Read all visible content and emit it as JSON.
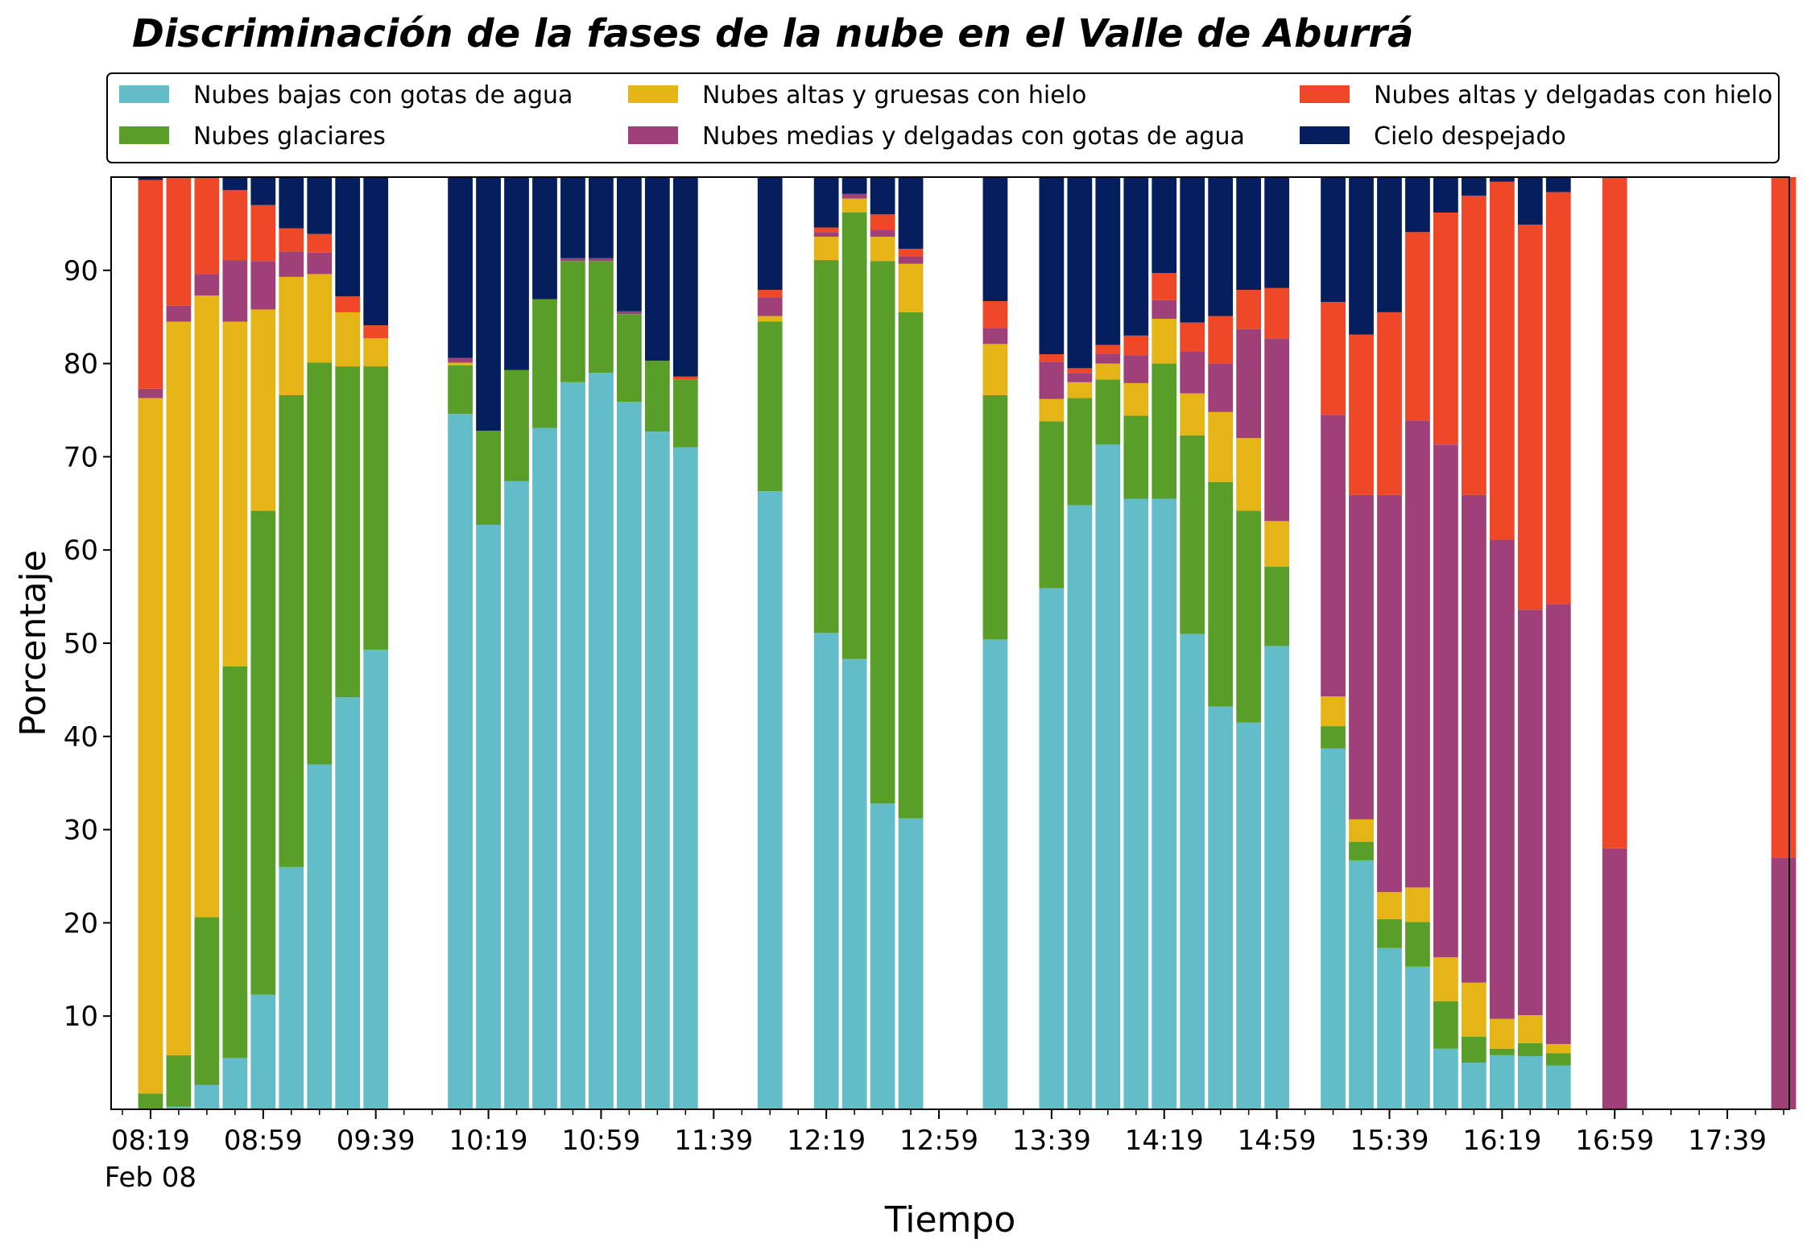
{
  "chart_data": {
    "type": "bar",
    "stacked": true,
    "title": "Discriminación de la fases de la nube en el Valle de Aburrá",
    "xlabel": "Tiempo",
    "ylabel": "Porcentaje",
    "ylim": [
      0,
      100
    ],
    "y_ticks": [
      10,
      20,
      30,
      40,
      50,
      60,
      70,
      80,
      90
    ],
    "x_range_minutes": [
      485,
      1081
    ],
    "x_ticks": [
      {
        "min": 499,
        "label": "08:19",
        "sub": "Feb 08"
      },
      {
        "min": 539,
        "label": "08:59"
      },
      {
        "min": 579,
        "label": "09:39"
      },
      {
        "min": 619,
        "label": "10:19"
      },
      {
        "min": 659,
        "label": "10:59"
      },
      {
        "min": 699,
        "label": "11:39"
      },
      {
        "min": 739,
        "label": "12:19"
      },
      {
        "min": 779,
        "label": "12:59"
      },
      {
        "min": 819,
        "label": "13:39"
      },
      {
        "min": 859,
        "label": "14:19"
      },
      {
        "min": 899,
        "label": "14:59"
      },
      {
        "min": 939,
        "label": "15:39"
      },
      {
        "min": 979,
        "label": "16:19"
      },
      {
        "min": 1019,
        "label": "16:59"
      },
      {
        "min": 1059,
        "label": "17:39"
      }
    ],
    "grid": false,
    "legend_position": "top",
    "series": [
      {
        "name": "Nubes bajas con gotas de agua",
        "color": "#63bdc8"
      },
      {
        "name": "Nubes glaciares",
        "color": "#5a9e2a"
      },
      {
        "name": "Nubes altas y gruesas con hielo",
        "color": "#e5b416"
      },
      {
        "name": "Nubes medias y delgadas con gotas de agua",
        "color": "#a04078"
      },
      {
        "name": "Nubes altas y delgadas con hielo",
        "color": "#ee4828"
      },
      {
        "name": "Cielo despejado",
        "color": "#041e5e"
      }
    ],
    "bars": [
      {
        "time": "08:19",
        "values": [
          0,
          1.7,
          74.6,
          1.0,
          22.4,
          0.3
        ]
      },
      {
        "time": "08:29",
        "values": [
          0.3,
          5.5,
          78.7,
          1.7,
          13.8,
          0
        ]
      },
      {
        "time": "08:39",
        "values": [
          2.6,
          18.0,
          66.7,
          2.3,
          10.4,
          0
        ]
      },
      {
        "time": "08:49",
        "values": [
          5.5,
          42.0,
          37.0,
          6.6,
          7.5,
          1.4
        ]
      },
      {
        "time": "08:59",
        "values": [
          12.3,
          51.9,
          21.6,
          5.2,
          6.0,
          3.0
        ]
      },
      {
        "time": "09:09",
        "values": [
          26.0,
          50.6,
          12.7,
          2.7,
          2.5,
          5.5
        ]
      },
      {
        "time": "09:19",
        "values": [
          37.0,
          43.1,
          9.5,
          2.3,
          2.0,
          6.1
        ]
      },
      {
        "time": "09:29",
        "values": [
          44.2,
          35.5,
          5.8,
          0,
          1.7,
          12.8
        ]
      },
      {
        "time": "09:39",
        "values": [
          49.3,
          30.4,
          3.0,
          0,
          1.4,
          15.9
        ]
      },
      {
        "time": "10:09",
        "values": [
          74.6,
          5.2,
          0.3,
          0.5,
          0,
          19.4
        ]
      },
      {
        "time": "10:19",
        "values": [
          62.7,
          10.1,
          0,
          0,
          0,
          27.2
        ]
      },
      {
        "time": "10:29",
        "values": [
          67.4,
          11.9,
          0,
          0,
          0,
          20.7
        ]
      },
      {
        "time": "10:39",
        "values": [
          73.1,
          13.8,
          0,
          0,
          0,
          13.1
        ]
      },
      {
        "time": "10:49",
        "values": [
          78.0,
          13.0,
          0,
          0.3,
          0,
          8.7
        ]
      },
      {
        "time": "10:59",
        "values": [
          79.0,
          12.0,
          0,
          0.3,
          0,
          8.7
        ]
      },
      {
        "time": "11:09",
        "values": [
          75.9,
          9.4,
          0,
          0.3,
          0,
          14.4
        ]
      },
      {
        "time": "11:19",
        "values": [
          72.7,
          7.6,
          0,
          0,
          0,
          19.7
        ]
      },
      {
        "time": "11:29",
        "values": [
          71.0,
          7.3,
          0,
          0,
          0.3,
          21.4
        ]
      },
      {
        "time": "11:59",
        "values": [
          66.3,
          18.2,
          0.6,
          2.0,
          0.8,
          12.1
        ]
      },
      {
        "time": "12:19",
        "values": [
          51.1,
          40.0,
          2.5,
          0.5,
          0.5,
          5.4
        ]
      },
      {
        "time": "12:29",
        "values": [
          48.3,
          47.9,
          1.5,
          0.5,
          0,
          1.8
        ]
      },
      {
        "time": "12:39",
        "values": [
          32.8,
          58.2,
          2.6,
          0.7,
          1.7,
          4.0
        ]
      },
      {
        "time": "12:49",
        "values": [
          31.2,
          54.3,
          5.2,
          0.8,
          0.8,
          7.7
        ]
      },
      {
        "time": "13:19",
        "values": [
          50.4,
          26.2,
          5.5,
          1.7,
          2.9,
          13.3
        ]
      },
      {
        "time": "13:39",
        "values": [
          55.9,
          17.9,
          2.4,
          4.0,
          0.8,
          19.0
        ]
      },
      {
        "time": "13:49",
        "values": [
          64.8,
          11.5,
          1.7,
          1.0,
          0.5,
          20.5
        ]
      },
      {
        "time": "13:59",
        "values": [
          71.3,
          7.0,
          1.7,
          1.0,
          1.0,
          18.0
        ]
      },
      {
        "time": "14:09",
        "values": [
          65.5,
          8.9,
          3.5,
          3.0,
          2.1,
          17.0
        ]
      },
      {
        "time": "14:19",
        "values": [
          65.5,
          14.5,
          4.8,
          2.0,
          2.9,
          10.3
        ]
      },
      {
        "time": "14:29",
        "values": [
          51.0,
          21.3,
          4.5,
          4.5,
          3.1,
          15.6
        ]
      },
      {
        "time": "14:39",
        "values": [
          43.2,
          24.1,
          7.5,
          5.2,
          5.1,
          14.9
        ]
      },
      {
        "time": "14:49",
        "values": [
          41.5,
          22.7,
          7.8,
          11.7,
          4.2,
          12.1
        ]
      },
      {
        "time": "14:59",
        "values": [
          49.7,
          8.5,
          4.9,
          19.6,
          5.4,
          11.9
        ]
      },
      {
        "time": "15:19",
        "values": [
          38.7,
          2.4,
          3.2,
          30.2,
          12.1,
          13.4
        ]
      },
      {
        "time": "15:29",
        "values": [
          26.7,
          2.0,
          2.4,
          34.8,
          17.2,
          16.9
        ]
      },
      {
        "time": "15:39",
        "values": [
          17.3,
          3.1,
          2.9,
          42.6,
          19.6,
          14.5
        ]
      },
      {
        "time": "15:49",
        "values": [
          15.3,
          4.8,
          3.7,
          50.1,
          20.2,
          5.9
        ]
      },
      {
        "time": "15:59",
        "values": [
          6.5,
          5.1,
          4.7,
          55.0,
          24.9,
          3.8
        ]
      },
      {
        "time": "16:09",
        "values": [
          5.0,
          2.8,
          5.8,
          52.3,
          32.1,
          2.0
        ]
      },
      {
        "time": "16:19",
        "values": [
          5.8,
          0.7,
          3.2,
          51.4,
          38.4,
          0.5
        ]
      },
      {
        "time": "16:29",
        "values": [
          5.7,
          1.4,
          3.0,
          43.5,
          41.3,
          5.1
        ]
      },
      {
        "time": "16:39",
        "values": [
          4.7,
          1.3,
          1.0,
          47.2,
          44.2,
          1.6
        ]
      },
      {
        "time": "16:59",
        "values": [
          0,
          0,
          0,
          28.0,
          72.0,
          0
        ]
      },
      {
        "time": "17:59",
        "values": [
          0,
          0,
          0,
          27.0,
          73.0,
          0
        ]
      }
    ]
  }
}
